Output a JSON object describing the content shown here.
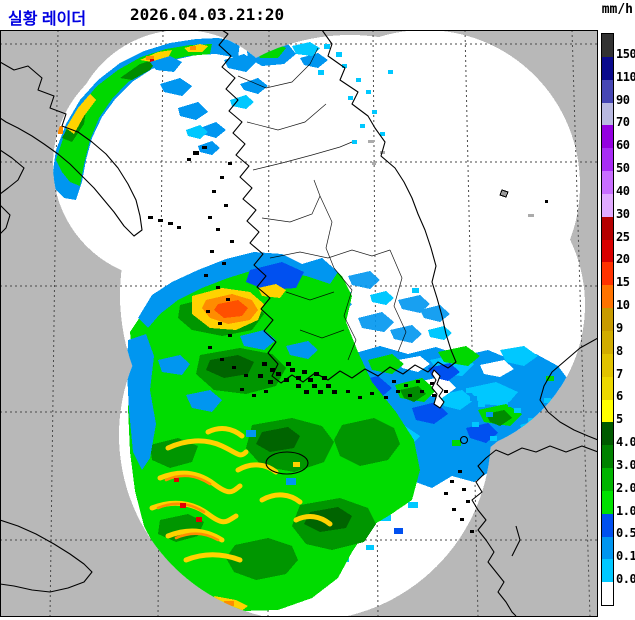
{
  "header": {
    "title": "실황 레이더",
    "timestamp": "2026.04.03.21:20",
    "title_color": "#0000e1"
  },
  "legend": {
    "unit": "mm/h",
    "boundary_labels": [
      "150",
      "110",
      "90",
      "70",
      "60",
      "50",
      "40",
      "30",
      "25",
      "20",
      "15",
      "10",
      "9",
      "8",
      "7",
      "6",
      "5",
      "4.0",
      "3.0",
      "2.0",
      "1.0",
      "0.5",
      "0.1",
      "0.0"
    ],
    "segment_colors": [
      "#323232",
      "#0a0a8c",
      "#4646b4",
      "#b9b9e1",
      "#9400e1",
      "#a82cf5",
      "#c96eff",
      "#e1aaff",
      "#b40000",
      "#d80000",
      "#ff3200",
      "#ff7300",
      "#c89b00",
      "#d2ad00",
      "#e1c300",
      "#edd800",
      "#ffff00",
      "#005a00",
      "#008200",
      "#00b400",
      "#00e100",
      "#0050f0",
      "#0096f0",
      "#00c8ff",
      "#ffffff"
    ]
  },
  "map": {
    "background_color": "#b8b8b8",
    "radar_coverage_color": "#ffffff",
    "coastline_color": "#000000"
  }
}
